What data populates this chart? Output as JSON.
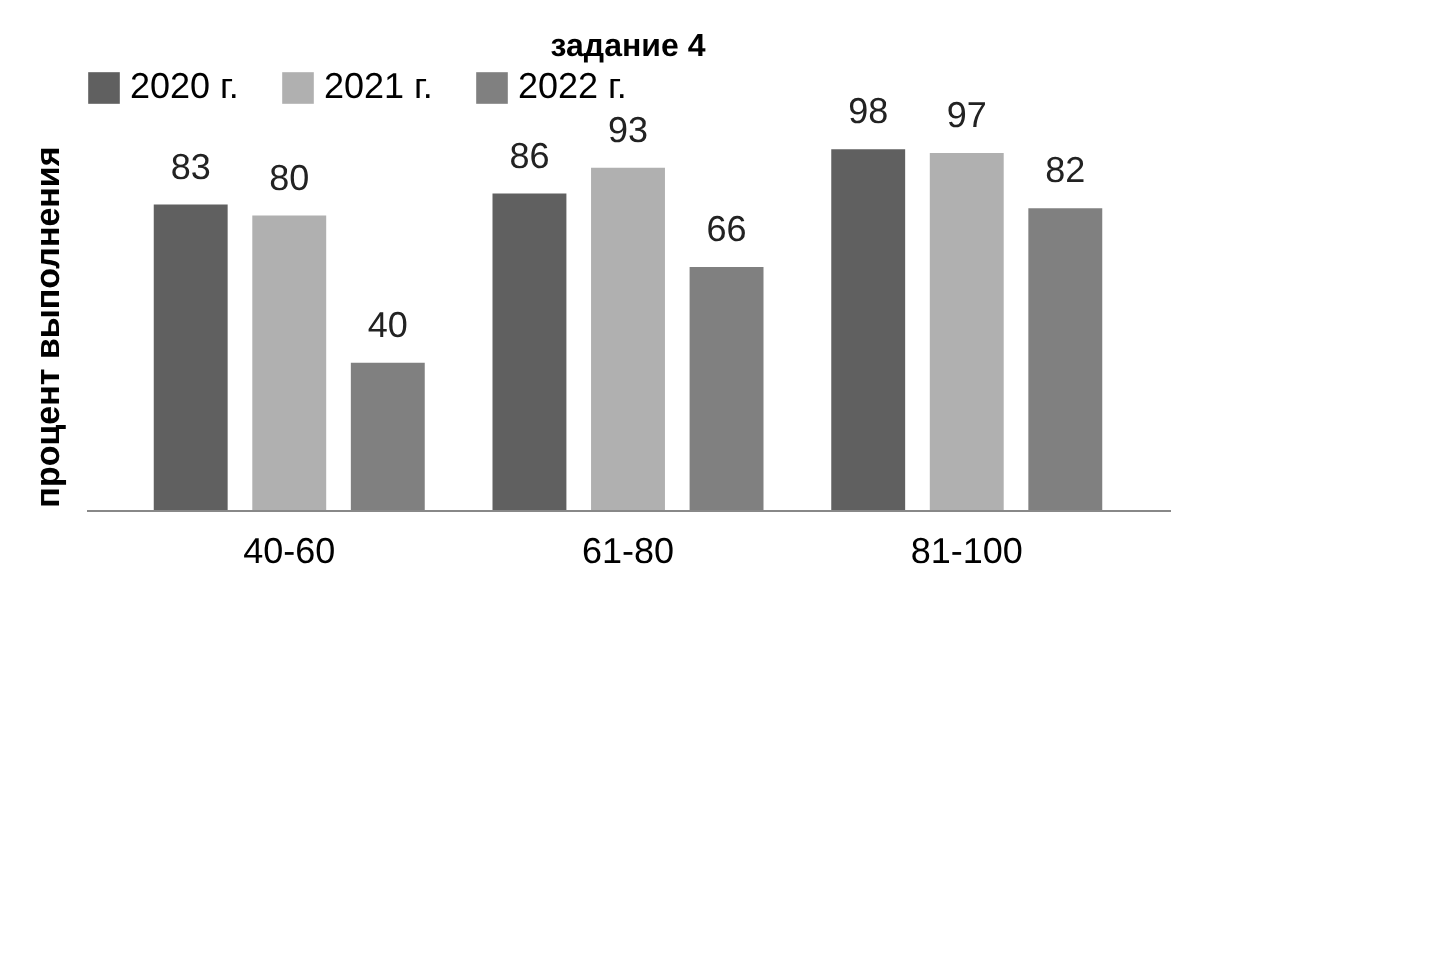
{
  "chart_data": {
    "type": "bar",
    "title": "задание 4",
    "ylabel": "процент выполнения",
    "categories": [
      "40-60",
      "61-80",
      "81-100"
    ],
    "series": [
      {
        "name": "2020 г.",
        "color": "#606060",
        "values": [
          83,
          86,
          98
        ]
      },
      {
        "name": "2021 г.",
        "color": "#b0b0b0",
        "values": [
          80,
          93,
          97
        ]
      },
      {
        "name": "2022 г.",
        "color": "#808080",
        "values": [
          40,
          66,
          82
        ]
      }
    ],
    "data_labels": true,
    "legend": "top",
    "grid": false
  }
}
